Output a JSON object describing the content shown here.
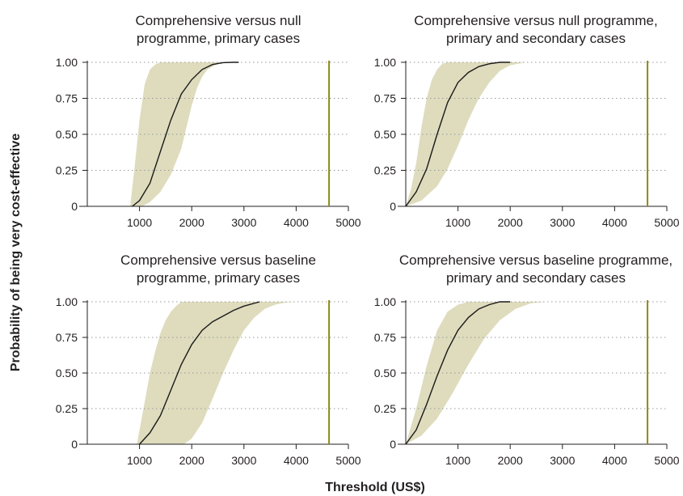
{
  "figure": {
    "ylabel": "Probability of being very cost-effective",
    "xlabel": "Threshold (US$)"
  },
  "colors": {
    "band": "#dedcbd",
    "curve": "#1a1a1a",
    "threshold_line": "#8a8a1a",
    "axis": "#231f20",
    "grid": "#9a9a9a"
  },
  "chart_data": [
    {
      "type": "area",
      "title_lines": [
        "Comprehensive versus null",
        "programme, primary cases"
      ],
      "x_ticks": [
        "1000",
        "2000",
        "3000",
        "4000",
        "5000"
      ],
      "y_ticks": [
        "0",
        "0.25",
        "0.50",
        "0.75",
        "1.00"
      ],
      "xlim": [
        0,
        5000
      ],
      "ylim": [
        0,
        1
      ],
      "grid": "horizontal dotted",
      "threshold_x": 4630,
      "series": [
        {
          "role": "median",
          "x": [
            860,
            1000,
            1200,
            1400,
            1600,
            1800,
            2000,
            2200,
            2400,
            2600,
            2800,
            2900
          ],
          "y": [
            0,
            0.04,
            0.16,
            0.38,
            0.6,
            0.78,
            0.88,
            0.95,
            0.985,
            0.998,
            1,
            1
          ]
        },
        {
          "role": "upper",
          "x": [
            820,
            900,
            1000,
            1100,
            1200,
            1300,
            1400,
            1500,
            1700,
            2000,
            2500,
            2900
          ],
          "y": [
            0,
            0.25,
            0.6,
            0.85,
            0.95,
            0.985,
            1,
            1,
            1,
            1,
            1,
            1
          ]
        },
        {
          "role": "lower",
          "x": [
            1050,
            1200,
            1400,
            1600,
            1800,
            1900,
            2000,
            2100,
            2200,
            2300,
            2500,
            2700,
            2900
          ],
          "y": [
            0,
            0.03,
            0.1,
            0.22,
            0.4,
            0.55,
            0.7,
            0.82,
            0.9,
            0.95,
            0.99,
            1,
            1
          ]
        }
      ]
    },
    {
      "type": "area",
      "title_lines": [
        "Comprehensive versus null programme,",
        "primary and secondary cases"
      ],
      "x_ticks": [
        "1000",
        "2000",
        "3000",
        "4000",
        "5000"
      ],
      "y_ticks": [
        "0",
        "0.25",
        "0.50",
        "0.75",
        "1.00"
      ],
      "xlim": [
        0,
        5000
      ],
      "ylim": [
        0,
        1
      ],
      "grid": "horizontal dotted",
      "threshold_x": 4630,
      "series": [
        {
          "role": "median",
          "x": [
            0,
            200,
            400,
            600,
            800,
            1000,
            1200,
            1400,
            1600,
            1800,
            2000
          ],
          "y": [
            0,
            0.1,
            0.26,
            0.5,
            0.72,
            0.86,
            0.93,
            0.97,
            0.99,
            1,
            1
          ]
        },
        {
          "role": "upper",
          "x": [
            0,
            100,
            200,
            300,
            400,
            500,
            600,
            700,
            800,
            1000,
            1500,
            2300
          ],
          "y": [
            0,
            0.12,
            0.3,
            0.55,
            0.75,
            0.88,
            0.95,
            0.99,
            1,
            1,
            1,
            1
          ]
        },
        {
          "role": "lower",
          "x": [
            0,
            300,
            600,
            800,
            1000,
            1200,
            1400,
            1600,
            1800,
            2000,
            2300
          ],
          "y": [
            0,
            0.04,
            0.14,
            0.26,
            0.42,
            0.6,
            0.75,
            0.86,
            0.94,
            0.98,
            1
          ]
        }
      ]
    },
    {
      "type": "area",
      "title_lines": [
        "Comprehensive versus baseline",
        "programme, primary cases"
      ],
      "x_ticks": [
        "1000",
        "2000",
        "3000",
        "4000",
        "5000"
      ],
      "y_ticks": [
        "0",
        "0.25",
        "0.50",
        "0.75",
        "1.00"
      ],
      "xlim": [
        0,
        5000
      ],
      "ylim": [
        0,
        1
      ],
      "grid": "horizontal dotted",
      "threshold_x": 4630,
      "series": [
        {
          "role": "median",
          "x": [
            1000,
            1200,
            1400,
            1600,
            1800,
            2000,
            2200,
            2400,
            2600,
            2800,
            3000,
            3300
          ],
          "y": [
            0,
            0.08,
            0.2,
            0.38,
            0.56,
            0.7,
            0.8,
            0.86,
            0.9,
            0.94,
            0.97,
            1
          ]
        },
        {
          "role": "upper",
          "x": [
            950,
            1100,
            1200,
            1300,
            1400,
            1500,
            1600,
            1700,
            1800,
            2000,
            2500,
            3300
          ],
          "y": [
            0,
            0.3,
            0.5,
            0.65,
            0.78,
            0.87,
            0.93,
            0.97,
            1,
            1,
            1,
            1
          ]
        },
        {
          "role": "lower",
          "x": [
            1850,
            2000,
            2200,
            2400,
            2600,
            2800,
            3000,
            3200,
            3400,
            3600,
            3800,
            4000
          ],
          "y": [
            0,
            0.04,
            0.15,
            0.32,
            0.5,
            0.66,
            0.8,
            0.89,
            0.95,
            0.98,
            0.995,
            1
          ]
        }
      ]
    },
    {
      "type": "area",
      "title_lines": [
        "Comprehensive versus baseline programme,",
        "primary and secondary cases"
      ],
      "x_ticks": [
        "1000",
        "2000",
        "3000",
        "4000",
        "5000"
      ],
      "y_ticks": [
        "0",
        "0.25",
        "0.50",
        "0.75",
        "1.00"
      ],
      "xlim": [
        0,
        5000
      ],
      "ylim": [
        0,
        1
      ],
      "grid": "horizontal dotted",
      "threshold_x": 4630,
      "series": [
        {
          "role": "median",
          "x": [
            0,
            200,
            400,
            600,
            800,
            1000,
            1200,
            1400,
            1600,
            1800,
            2000
          ],
          "y": [
            0,
            0.1,
            0.28,
            0.48,
            0.66,
            0.8,
            0.89,
            0.95,
            0.98,
            1,
            1
          ]
        },
        {
          "role": "upper",
          "x": [
            0,
            200,
            400,
            600,
            800,
            1000,
            1200,
            1500,
            2000
          ],
          "y": [
            0,
            0.25,
            0.55,
            0.8,
            0.93,
            0.98,
            1,
            1,
            1
          ]
        },
        {
          "role": "lower",
          "x": [
            0,
            300,
            600,
            900,
            1200,
            1500,
            1800,
            2100,
            2400,
            2700
          ],
          "y": [
            0,
            0.06,
            0.18,
            0.36,
            0.56,
            0.74,
            0.87,
            0.95,
            0.99,
            1
          ]
        }
      ]
    }
  ]
}
